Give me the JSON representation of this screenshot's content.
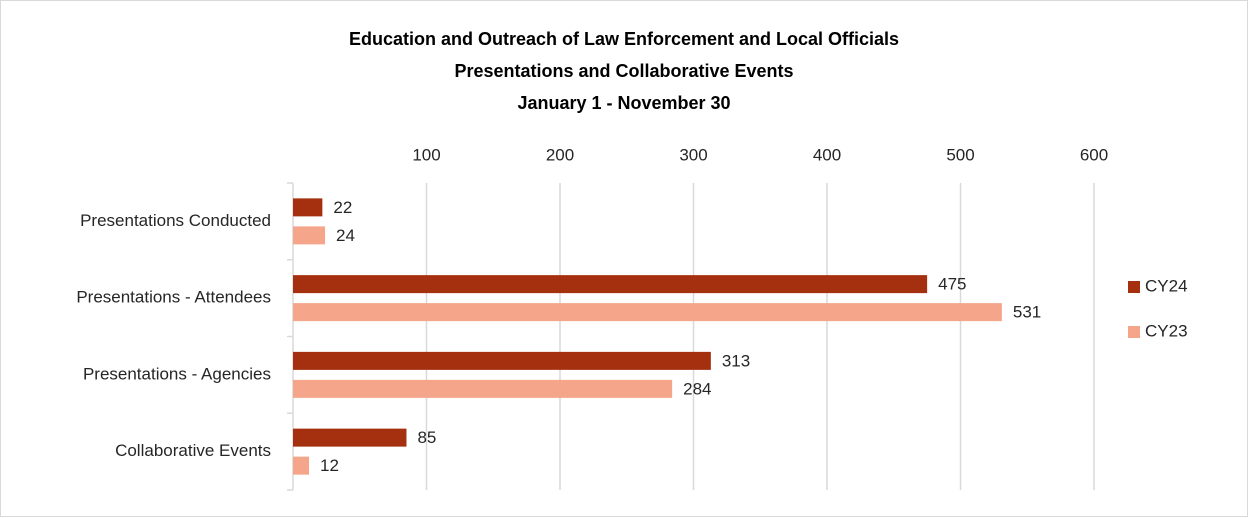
{
  "chart_data": {
    "type": "bar",
    "orientation": "horizontal",
    "title": "Education and Outreach of Law Enforcement and Local Officials",
    "subtitle": [
      "Presentations and Collaborative Events",
      "January 1 - November 30"
    ],
    "categories": [
      "Presentations Conducted",
      "Presentations - Attendees",
      "Presentations - Agencies",
      "Collaborative Events"
    ],
    "series": [
      {
        "name": "CY24",
        "color": "#a5300f",
        "values": [
          22,
          475,
          313,
          85
        ]
      },
      {
        "name": "CY23",
        "color": "#f4a58a",
        "values": [
          24,
          531,
          284,
          12
        ]
      }
    ],
    "xlim": [
      0,
      600
    ],
    "xticks": [
      100,
      200,
      300,
      400,
      500,
      600
    ],
    "grid": true,
    "legend": "right"
  }
}
